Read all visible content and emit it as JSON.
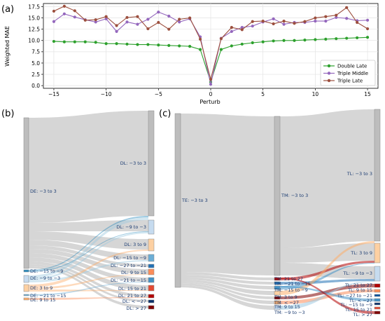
{
  "panels": {
    "a": "(a)",
    "b": "(b)",
    "c": "(c)"
  },
  "chart_data": [
    {
      "type": "line",
      "panel": "(a)",
      "xlabel": "Perturb",
      "ylabel": "Weighted MAE",
      "xlim": [
        -16,
        16
      ],
      "ylim": [
        -0.6,
        18.2
      ],
      "xticks": [
        "−15",
        "−10",
        "−5",
        "0",
        "5",
        "10",
        "15"
      ],
      "xtick_values": [
        -15,
        -10,
        -5,
        0,
        5,
        10,
        15
      ],
      "yticks": [
        "0.0",
        "2.5",
        "5.0",
        "7.5",
        "10.0",
        "12.5",
        "15.0",
        "17.5"
      ],
      "ytick_values": [
        0,
        2.5,
        5,
        7.5,
        10,
        12.5,
        15,
        17.5
      ],
      "grid": true,
      "legend_position": "lower-right",
      "x": [
        -15,
        -14,
        -13,
        -12,
        -11,
        -10,
        -9,
        -8,
        -7,
        -6,
        -5,
        -4,
        -3,
        -2,
        -1,
        0,
        1,
        2,
        3,
        4,
        5,
        6,
        7,
        8,
        9,
        10,
        11,
        12,
        13,
        14,
        15
      ],
      "series": [
        {
          "name": "Double Late",
          "color": "#2ca02c",
          "values": [
            9.8,
            9.7,
            9.7,
            9.7,
            9.6,
            9.3,
            9.3,
            9.2,
            9.1,
            9.1,
            9.0,
            8.9,
            8.8,
            8.7,
            8.0,
            0.8,
            8.0,
            8.8,
            9.2,
            9.5,
            9.7,
            9.9,
            10.0,
            10.0,
            10.1,
            10.2,
            10.3,
            10.4,
            10.5,
            10.6,
            10.7
          ]
        },
        {
          "name": "Triple Middle",
          "color": "#9467bd",
          "values": [
            14.2,
            15.9,
            15.2,
            14.6,
            14.1,
            14.8,
            12.0,
            14.1,
            13.6,
            14.7,
            16.3,
            15.4,
            14.1,
            14.8,
            10.8,
            0.3,
            10.5,
            12.0,
            12.9,
            13.2,
            14.1,
            14.8,
            13.6,
            14.0,
            14.0,
            14.3,
            14.3,
            15.1,
            14.9,
            14.4,
            14.5
          ]
        },
        {
          "name": "Triple Late",
          "color": "#9c4f3e",
          "values": [
            16.5,
            17.6,
            16.6,
            14.5,
            14.6,
            15.3,
            13.3,
            15.1,
            15.3,
            12.6,
            14.0,
            12.5,
            14.7,
            15.0,
            10.3,
            1.4,
            10.4,
            12.9,
            12.4,
            14.2,
            14.3,
            13.7,
            14.3,
            13.8,
            14.2,
            15.0,
            15.3,
            15.6,
            17.3,
            14.0,
            12.6
          ]
        }
      ]
    },
    {
      "type": "sankey",
      "panel": "(b)",
      "source_labels": [
        "DE: −3 to 3",
        "DE: −15 to −9",
        "DE: −9 to −3",
        "DE: 3 to 9",
        "DE: −21 to −15",
        "DE: 9 to 15"
      ],
      "target_labels": [
        "DL: −3 to 3",
        "DL: −9 to −3",
        "DL: 3 to 9",
        "DL: −15 to −9",
        "DL: −27 to −21",
        "DL: 9 to 15",
        "DL: −21 to −15",
        "DL: 15 to 21",
        "DL: 21 to 27",
        "DL: < −27",
        "DL: > 27"
      ]
    },
    {
      "type": "sankey",
      "panel": "(c)",
      "source_labels": [
        "TE: −3 to 3"
      ],
      "middle_labels": [
        "TM: −3 to 3",
        "TM: 21 to 27",
        "TM: −21 to −15",
        "TM: −15 to −9",
        "TM: 3 to 9",
        "TM: < −27",
        "TM: 9 to 15",
        "TM: −9 to −3"
      ],
      "target_labels": [
        "TL: −3 to 3",
        "TL: 3 to 9",
        "TL: −9 to −3",
        "TL: 21 to 27",
        "TL: 9 to 15",
        "TL: −27 to −21",
        "TL: −15 to −9",
        "TL: < −27",
        "TL: 15 to 21",
        "TL: > 27"
      ]
    }
  ]
}
